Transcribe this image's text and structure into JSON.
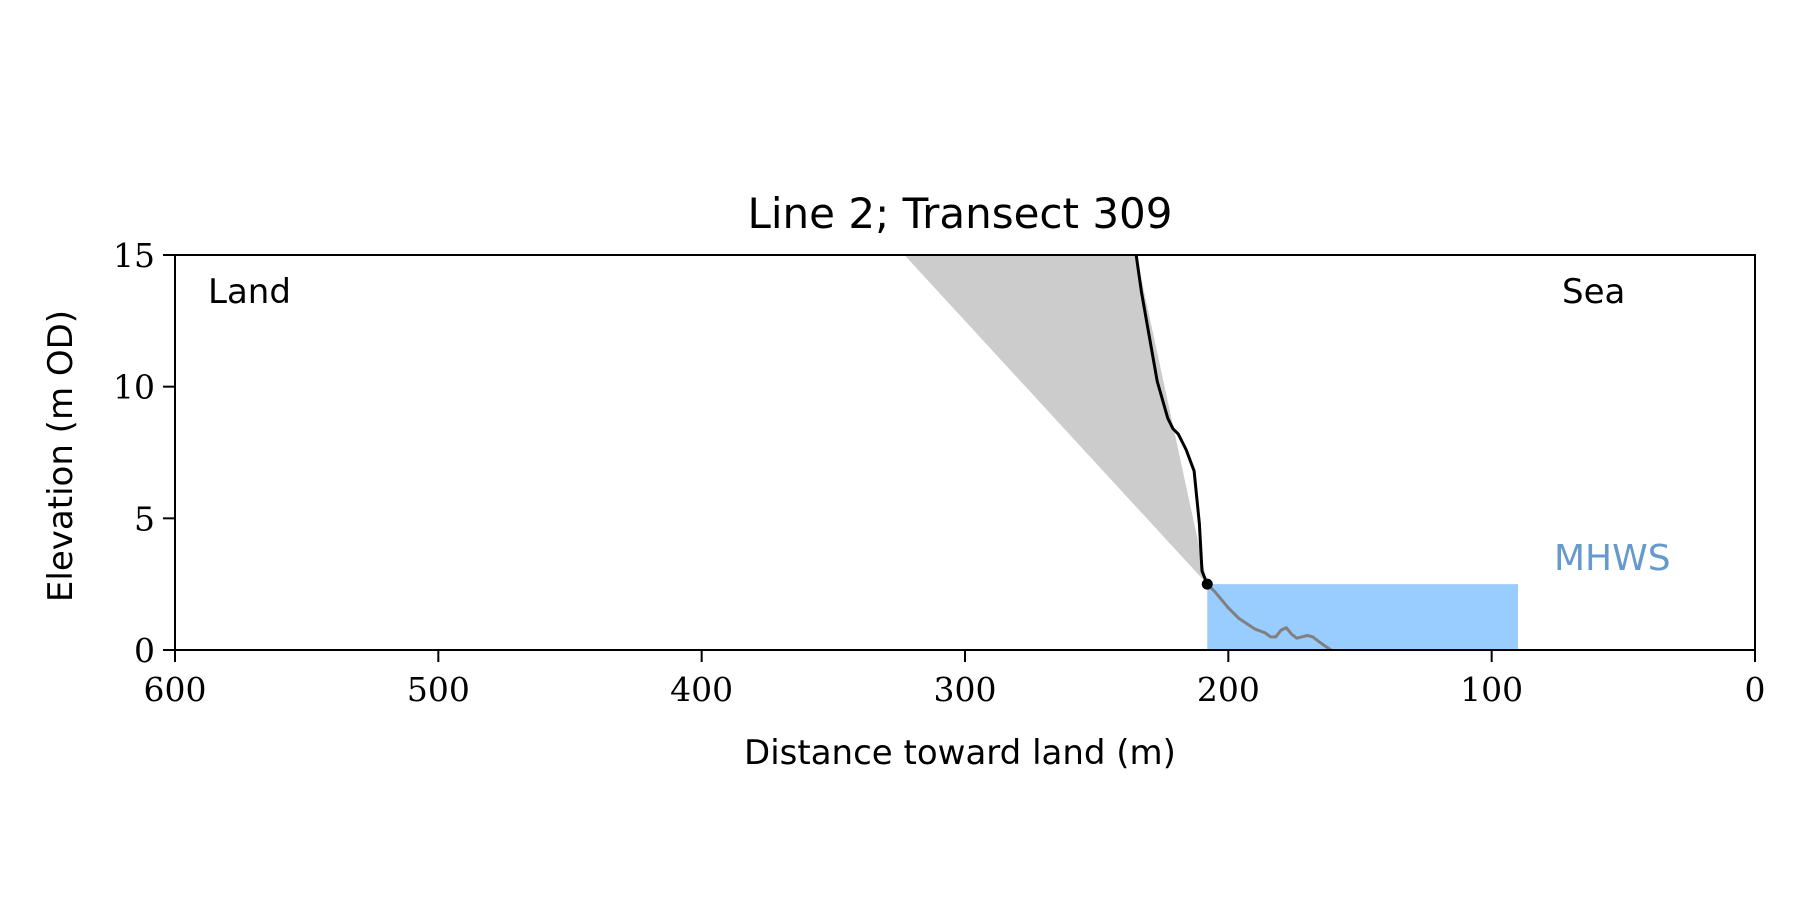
{
  "chart_data": {
    "type": "line",
    "title": "Line 2; Transect 309",
    "xlabel": "Distance toward land (m)",
    "ylabel": "Elevation (m OD)",
    "xlim": [
      600,
      0
    ],
    "ylim": [
      0,
      15
    ],
    "x_inverted": true,
    "xticks": [
      600,
      500,
      400,
      300,
      200,
      100,
      0
    ],
    "yticks": [
      0,
      5,
      10,
      15
    ],
    "grid": false,
    "annotations": {
      "land": "Land",
      "sea": "Sea",
      "mhws": "MHWS"
    },
    "colors": {
      "cliff_line": "#000000",
      "foreshore_line": "#808080",
      "wedge_fill": "#cccccc",
      "water_fill": "#99ccff",
      "mhws_label": "#6699cc"
    },
    "mhws_level": 2.5,
    "water_extent": [
      208,
      90
    ],
    "cliff_toe": {
      "x": 208,
      "y": 2.5
    },
    "wedge": [
      {
        "x": 323,
        "y": 15
      },
      {
        "x": 235,
        "y": 15
      },
      {
        "x": 208,
        "y": 2.5
      }
    ],
    "series": [
      {
        "x": [
          235,
          233,
          230,
          227,
          223,
          221,
          219,
          216,
          213,
          211,
          210,
          208
        ],
        "y": [
          15,
          13.6,
          11.9,
          10.2,
          8.8,
          8.4,
          8.2,
          7.6,
          6.8,
          4.8,
          3.0,
          2.5
        ]
      },
      {
        "x": [
          208,
          205,
          200,
          196,
          193,
          190,
          186,
          184,
          182,
          180,
          178,
          176,
          174,
          172,
          170,
          168,
          166,
          164,
          161
        ],
        "y": [
          2.5,
          2.2,
          1.6,
          1.2,
          1.0,
          0.8,
          0.65,
          0.5,
          0.5,
          0.75,
          0.85,
          0.6,
          0.45,
          0.5,
          0.55,
          0.5,
          0.35,
          0.2,
          0.0
        ]
      }
    ]
  }
}
